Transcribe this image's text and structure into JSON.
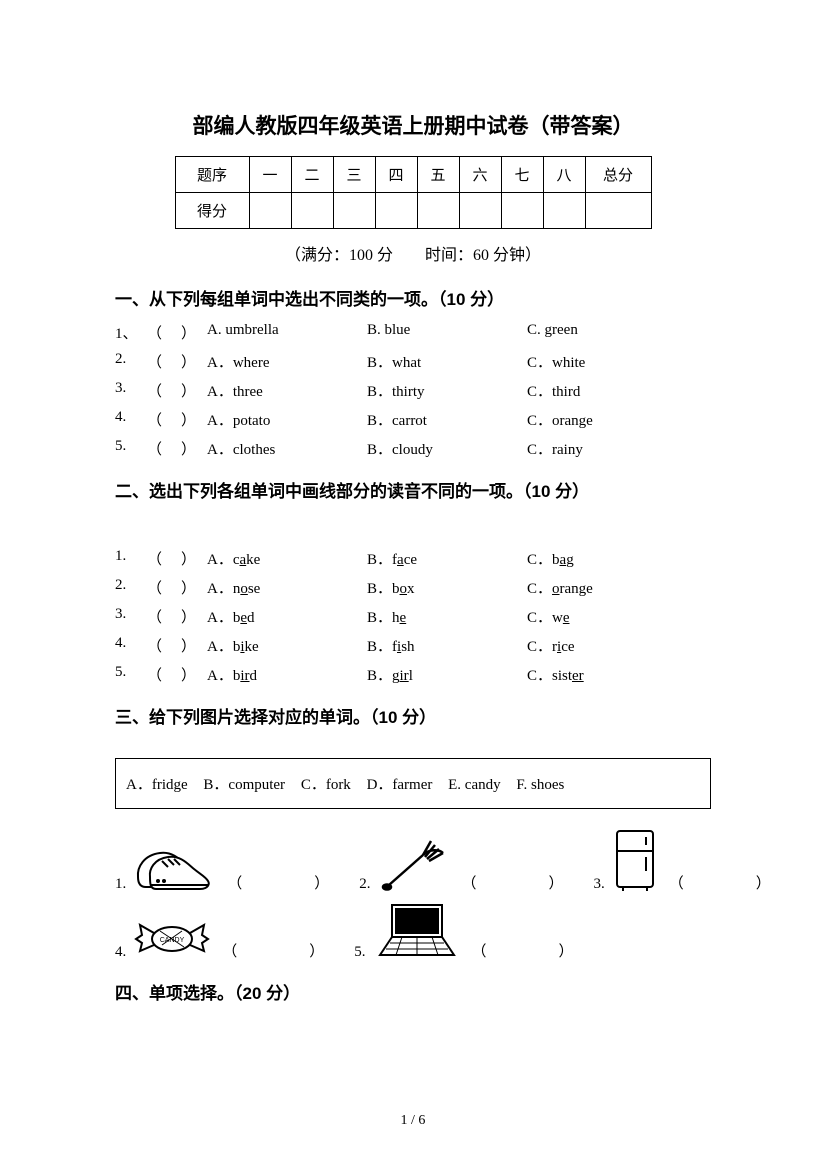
{
  "title": "部编人教版四年级英语上册期中试卷（带答案）",
  "scoreTable": {
    "row1Label": "题序",
    "cols": [
      "一",
      "二",
      "三",
      "四",
      "五",
      "六",
      "七",
      "八"
    ],
    "totalLabel": "总分",
    "row2Label": "得分"
  },
  "subtitle": "（满分：100 分　　时间：60 分钟）",
  "section1": {
    "heading": "一、从下列每组单词中选出不同类的一项。（10 分）",
    "items": [
      {
        "n": "1、",
        "a": "A. umbrella",
        "b": "B. blue",
        "c": "C. green"
      },
      {
        "n": "2.",
        "a": "A．where",
        "b": "B．what",
        "c": "C．white"
      },
      {
        "n": "3.",
        "a": "A．three",
        "b": "B．thirty",
        "c": "C．third"
      },
      {
        "n": "4.",
        "a": "A．potato",
        "b": "B．carrot",
        "c": "C．orange"
      },
      {
        "n": "5.",
        "a": "A．clothes",
        "b": "B．cloudy",
        "c": "C．rainy"
      }
    ]
  },
  "section2": {
    "heading": "二、选出下列各组单词中画线部分的读音不同的一项。（10 分）",
    "items": [
      {
        "n": "1.",
        "a": {
          "pre": "A．c",
          "u": "a",
          "post": "ke"
        },
        "b": {
          "pre": "B．f",
          "u": "a",
          "post": "ce"
        },
        "c": {
          "pre": "C．b",
          "u": "a",
          "post": "g"
        }
      },
      {
        "n": "2.",
        "a": {
          "pre": "A．n",
          "u": "o",
          "post": "se"
        },
        "b": {
          "pre": "B．b",
          "u": "o",
          "post": "x"
        },
        "c": {
          "pre": "C．",
          "u": "o",
          "post": "range"
        }
      },
      {
        "n": "3.",
        "a": {
          "pre": "A．b",
          "u": "e",
          "post": "d"
        },
        "b": {
          "pre": "B．h",
          "u": "e",
          "post": ""
        },
        "c": {
          "pre": "C．w",
          "u": "e",
          "post": ""
        }
      },
      {
        "n": "4.",
        "a": {
          "pre": "A．b",
          "u": "i",
          "post": "ke"
        },
        "b": {
          "pre": "B．f",
          "u": "i",
          "post": "sh"
        },
        "c": {
          "pre": "C．r",
          "u": "i",
          "post": "ce"
        }
      },
      {
        "n": "5.",
        "a": {
          "pre": "A．b",
          "u": "ir",
          "post": "d"
        },
        "b": {
          "pre": "B．g",
          "u": "ir",
          "post": "l"
        },
        "c": {
          "pre": "C．sist",
          "u": "er",
          "post": ""
        }
      }
    ]
  },
  "section3": {
    "heading": "三、给下列图片选择对应的单词。（10 分）",
    "options": [
      "A．fridge",
      "B．computer",
      "C．fork",
      "D．farmer",
      "E. candy",
      "F. shoes"
    ],
    "imgs": {
      "row1": [
        {
          "n": "1."
        },
        {
          "n": "2."
        },
        {
          "n": "3."
        }
      ],
      "row2": [
        {
          "n": "4."
        },
        {
          "n": "5."
        }
      ]
    }
  },
  "section4": {
    "heading": "四、单项选择。（20 分）"
  },
  "blankParen": "（　）",
  "ansParen": "（　　）",
  "pageNum": "1 / 6"
}
